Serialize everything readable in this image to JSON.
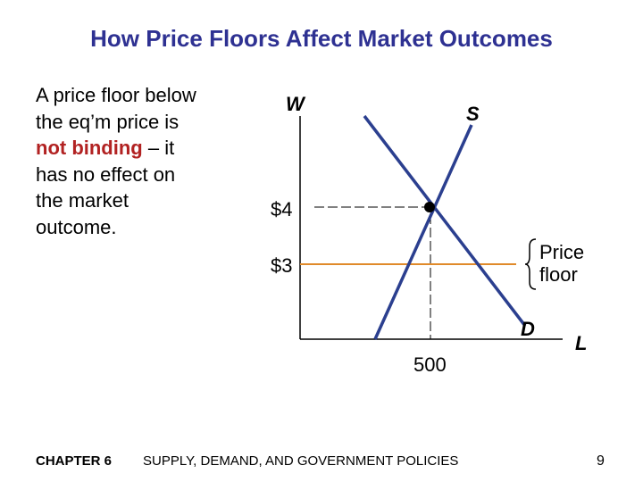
{
  "title": "How Price Floors Affect Market Outcomes",
  "body": {
    "line1": "A price floor below the eq’m price is ",
    "emph": "not binding",
    "line2": " – it has no effect on the market outcome."
  },
  "graph": {
    "y_axis_label": "W",
    "x_axis_label": "L",
    "supply_label": "S",
    "demand_label": "D",
    "eq_price_label": "$4",
    "floor_price_label": "$3",
    "quantity_label": "500",
    "floor_annotation": "Price floor",
    "colors": {
      "curves": "#2b3f8f",
      "floor_line": "#e08a2a",
      "dashed": "#000000"
    }
  },
  "footer": {
    "chapter": "CHAPTER 6",
    "subtitle": "SUPPLY, DEMAND, AND GOVERNMENT POLICIES",
    "page_number": "9"
  }
}
